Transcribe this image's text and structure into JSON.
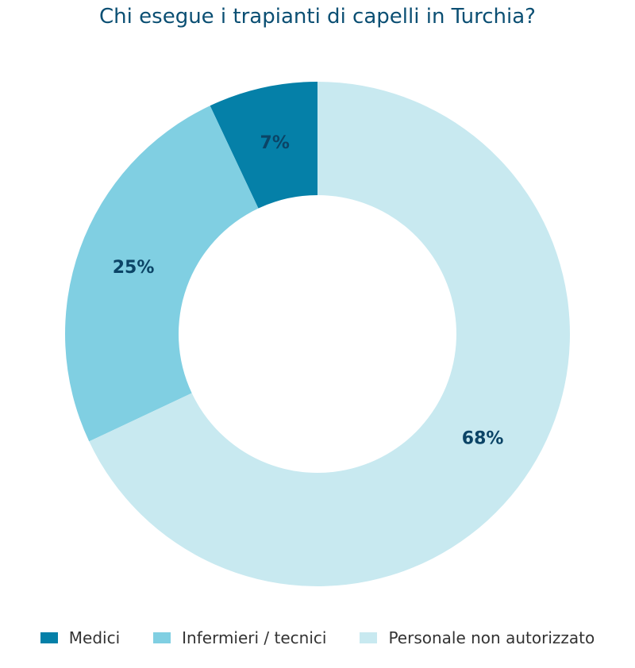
{
  "chart_data": {
    "type": "pie",
    "title": "Chi esegue i trapianti di capelli in Turchia?",
    "categories": [
      "Medici",
      "Infermieri / tecnici",
      "Personale non autorizzato"
    ],
    "values": [
      7,
      25,
      68
    ],
    "value_labels": [
      "7%",
      "25%",
      "68%"
    ],
    "colors": [
      "#0580a8",
      "#80cfe2",
      "#c8e9f0"
    ],
    "label_color": "#0b4466",
    "donut": true,
    "start": "top",
    "direction": "counterclockwise",
    "legend_position": "bottom"
  }
}
